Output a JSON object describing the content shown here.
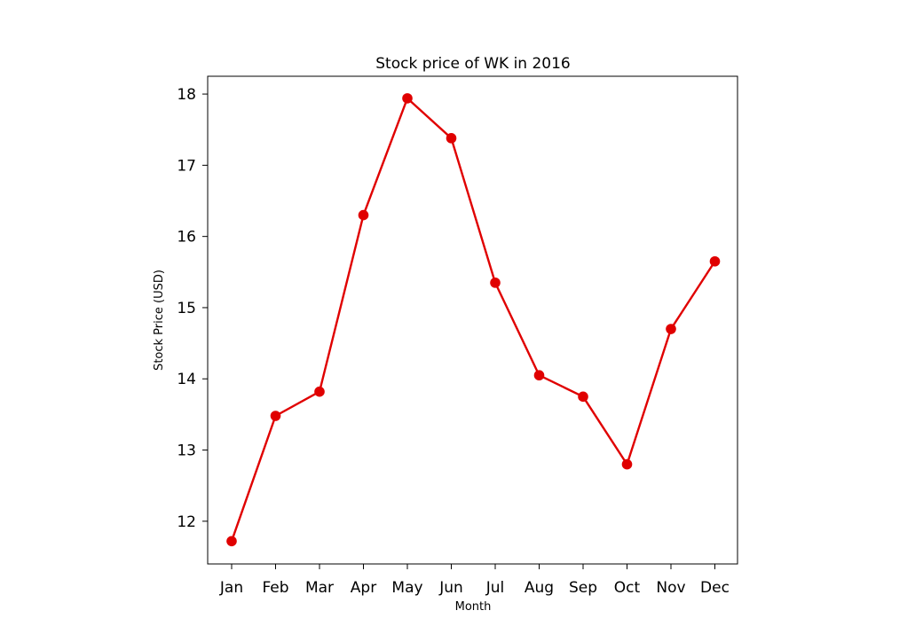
{
  "chart_data": {
    "type": "line",
    "title": "Stock price of WK in 2016",
    "xlabel": "Month",
    "ylabel": "Stock Price (USD)",
    "categories": [
      "Jan",
      "Feb",
      "Mar",
      "Apr",
      "May",
      "Jun",
      "Jul",
      "Aug",
      "Sep",
      "Oct",
      "Nov",
      "Dec"
    ],
    "series": [
      {
        "values": [
          11.72,
          13.48,
          13.82,
          16.3,
          17.94,
          17.38,
          15.35,
          14.05,
          13.75,
          12.8,
          14.7,
          15.65
        ],
        "color": "#e00000",
        "marker": "circle"
      }
    ],
    "yticks": [
      12,
      13,
      14,
      15,
      16,
      17,
      18
    ],
    "ylim": [
      11.4,
      18.25
    ],
    "grid": false,
    "legend": "none"
  }
}
